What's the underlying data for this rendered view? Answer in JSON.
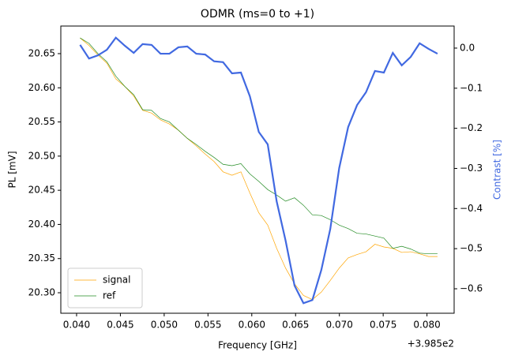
{
  "chart_data": {
    "type": "line",
    "title": "ODMR (ms=0 to +1)",
    "xlabel": "Frequency [GHz]",
    "ylabel": "PL [mV]",
    "y2label": "Contrast [%]",
    "y2label_color": "#4169e1",
    "x_offset_label": "+3.985e2",
    "x": [
      0.0404,
      0.04142,
      0.04244,
      0.04346,
      0.04448,
      0.0455,
      0.04652,
      0.04754,
      0.04856,
      0.04958,
      0.0506,
      0.05162,
      0.05264,
      0.05366,
      0.05468,
      0.0557,
      0.05672,
      0.05774,
      0.05876,
      0.05978,
      0.0608,
      0.06182,
      0.06284,
      0.06386,
      0.06488,
      0.0659,
      0.06692,
      0.06794,
      0.06896,
      0.06998,
      0.071,
      0.07202,
      0.07304,
      0.07406,
      0.07508,
      0.0761,
      0.07712,
      0.07814,
      0.07916,
      0.08018,
      0.0812
    ],
    "series": [
      {
        "name": "signal",
        "color": "#ffa500",
        "linewidth": 0.7,
        "values": [
          20.673,
          20.662,
          20.648,
          20.636,
          20.613,
          20.602,
          20.588,
          20.567,
          20.563,
          20.553,
          20.547,
          20.538,
          20.526,
          20.515,
          20.503,
          20.492,
          20.477,
          20.472,
          20.477,
          20.446,
          20.417,
          20.399,
          20.365,
          20.336,
          20.313,
          20.296,
          20.29,
          20.301,
          20.318,
          20.336,
          20.351,
          20.356,
          20.36,
          20.371,
          20.367,
          20.365,
          20.359,
          20.36,
          20.357,
          20.353,
          20.353
        ]
      },
      {
        "name": "ref",
        "color": "#228b22",
        "linewidth": 0.7,
        "values": [
          20.673,
          20.665,
          20.65,
          20.638,
          20.617,
          20.602,
          20.59,
          20.568,
          20.567,
          20.555,
          20.55,
          20.538,
          20.526,
          20.517,
          20.507,
          20.498,
          20.488,
          20.486,
          20.489,
          20.474,
          20.463,
          20.451,
          20.443,
          20.434,
          20.439,
          20.428,
          20.414,
          20.413,
          20.407,
          20.399,
          20.394,
          20.387,
          20.386,
          20.383,
          20.38,
          20.365,
          20.368,
          20.364,
          20.358,
          20.357,
          20.357
        ]
      },
      {
        "axis": "y2",
        "color": "#4169e1",
        "linewidth": 2.2,
        "values": [
          0.008,
          -0.026,
          -0.018,
          -0.004,
          0.026,
          0.006,
          -0.012,
          0.01,
          0.008,
          -0.014,
          -0.014,
          0.002,
          0.004,
          -0.014,
          -0.016,
          -0.033,
          -0.035,
          -0.063,
          -0.061,
          -0.12,
          -0.209,
          -0.24,
          -0.382,
          -0.48,
          -0.592,
          -0.636,
          -0.628,
          -0.553,
          -0.451,
          -0.299,
          -0.197,
          -0.142,
          -0.11,
          -0.057,
          -0.061,
          -0.012,
          -0.043,
          -0.022,
          0.012,
          -0.002,
          -0.014
        ]
      }
    ],
    "xlim": [
      0.0382,
      0.0831
    ],
    "xticks": [
      {
        "value": 0.04,
        "label": "0.040"
      },
      0.045,
      {
        "value": 0.05,
        "label": "0.050"
      },
      0.055,
      {
        "value": 0.06,
        "label": "0.060"
      },
      0.065,
      {
        "value": 0.07,
        "label": "0.070"
      },
      0.075,
      {
        "value": 0.08,
        "label": "0.080"
      }
    ],
    "ylim": [
      20.27,
      20.6904
    ],
    "yticks": [
      {
        "value": 20.3,
        "label": "20.30"
      },
      20.35,
      {
        "value": 20.4,
        "label": "20.40"
      },
      20.45,
      {
        "value": 20.5,
        "label": "20.50"
      },
      20.55,
      {
        "value": 20.6,
        "label": "20.60"
      },
      20.65
    ],
    "y2lim": [
      -0.661,
      0.055
    ],
    "y2ticks": [
      {
        "value": -0.6,
        "label": "−0.6"
      },
      {
        "value": -0.5,
        "label": "−0.5"
      },
      {
        "value": -0.4,
        "label": "−0.4"
      },
      {
        "value": -0.3,
        "label": "−0.3"
      },
      {
        "value": -0.2,
        "label": "−0.2"
      },
      {
        "value": -0.1,
        "label": "−0.1"
      },
      {
        "value": 0,
        "label": "0.0"
      }
    ],
    "legend": "lower left",
    "grid": false
  }
}
